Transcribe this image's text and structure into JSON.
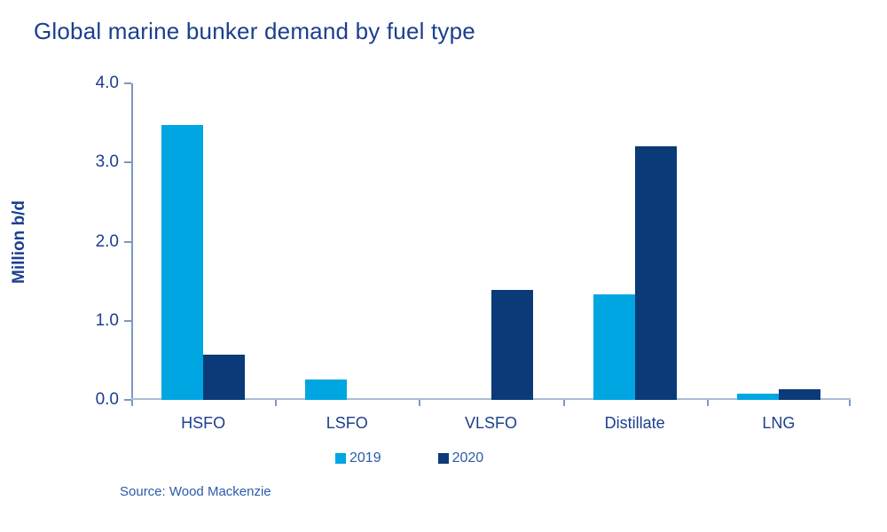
{
  "header": {
    "title": "Global marine bunker demand by fuel type"
  },
  "footer": {
    "source": "Source: Wood Mackenzie"
  },
  "chart_data": {
    "type": "bar",
    "title": "Global marine bunker demand by fuel type",
    "categories": [
      "HSFO",
      "LSFO",
      "VLSFO",
      "Distillate",
      "LNG"
    ],
    "series": [
      {
        "name": "2019",
        "color": "#00A6E2",
        "values": [
          3.47,
          0.26,
          0,
          1.33,
          0.08
        ]
      },
      {
        "name": "2020",
        "color": "#0A3A78",
        "values": [
          0.57,
          0,
          1.39,
          3.21,
          0.13
        ]
      }
    ],
    "ylabel": "Million b/d",
    "xlabel": "",
    "ylim": [
      0,
      4
    ],
    "yticks": [
      0,
      1,
      2,
      3,
      4
    ],
    "ytick_labels": [
      "0.0",
      "1.0",
      "2.0",
      "3.0",
      "4.0"
    ],
    "grid": false,
    "legend_position": "bottom-center",
    "legend_entries": [
      "2019",
      "2020"
    ]
  },
  "colors": {
    "background": "#FFFFFF",
    "title_text": "#1B3F8F",
    "axis_text": "#1B3F8F",
    "axis_line": "#7E97C1",
    "baseline": "#A8BDD8",
    "tick_mark": "#7E97C1",
    "legend_text": "#2B5CA9",
    "source_text": "#2B5CA9",
    "series_2019": "#00A6E2",
    "series_2020": "#0A3A78"
  }
}
